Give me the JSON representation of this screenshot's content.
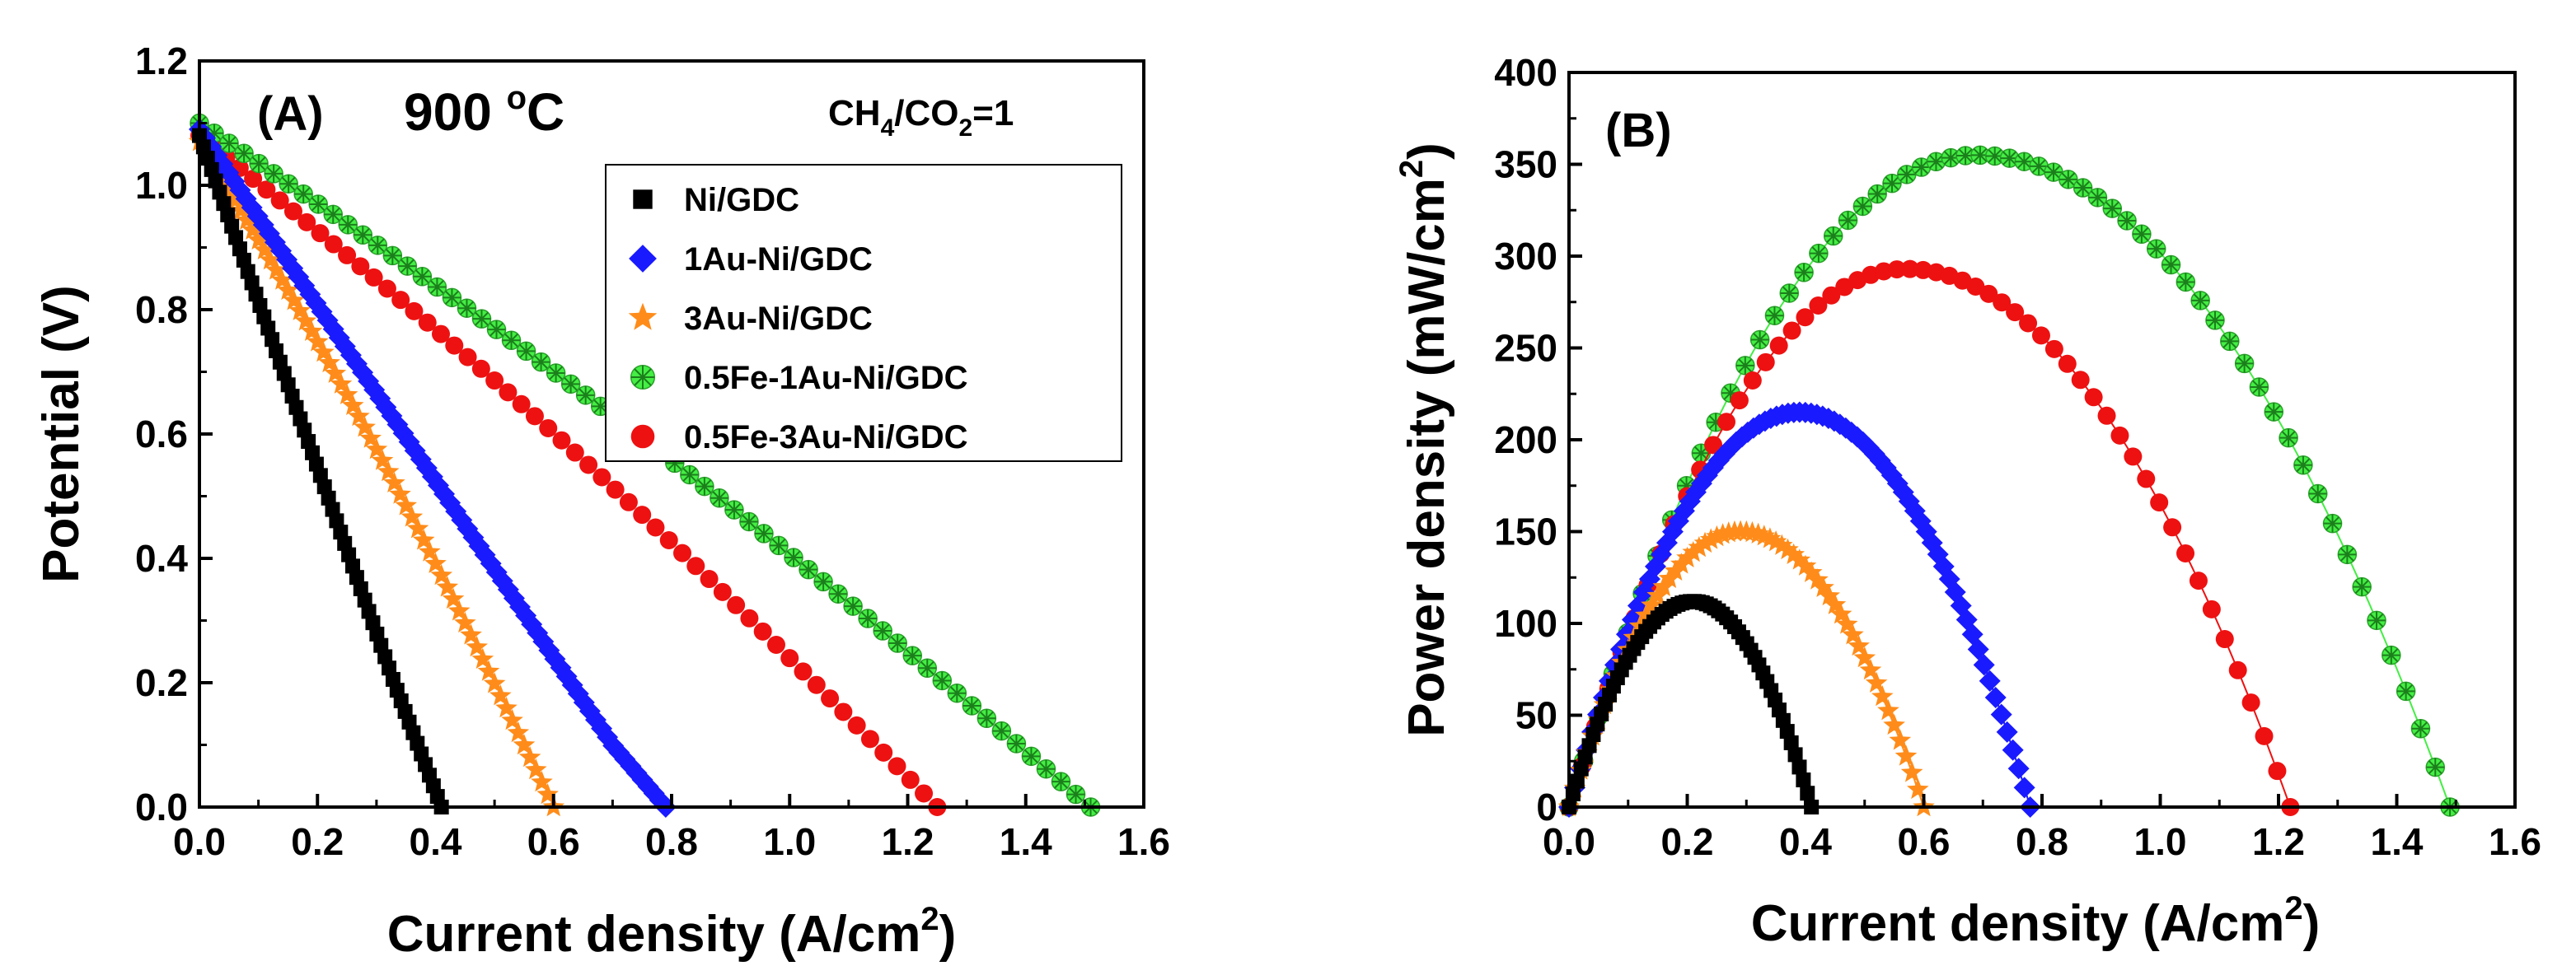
{
  "figure": {
    "colors": {
      "Ni/GDC": "#000000",
      "1Au-Ni/GDC": "#1a1aff",
      "3Au-Ni/GDC": "#ff8c1a",
      "0.5Fe-1Au-Ni/GDC": "#44ee44",
      "0.5Fe-3Au-Ni/GDC": "#ee1111"
    }
  },
  "chart_data": [
    {
      "type": "scatter",
      "panel": "(A)",
      "title": "900 °C",
      "title_parts": {
        "value": "900 ",
        "degree": "o",
        "unit": "C"
      },
      "condition": "CH4/CO2=1",
      "condition_parts": {
        "a": "CH",
        "a_sub": "4",
        "b": "/CO",
        "b_sub": "2",
        "c": "=1"
      },
      "xlabel": "Current density (A/cm2)",
      "xlabel_parts": {
        "main": "Current density (A/cm",
        "sup": "2",
        "end": ")"
      },
      "ylabel": "Potential (V)",
      "xlim": [
        0.0,
        1.6
      ],
      "ylim": [
        0.0,
        1.2
      ],
      "xticks": [
        "0.0",
        "0.2",
        "0.4",
        "0.6",
        "0.8",
        "1.0",
        "1.2",
        "1.4",
        "1.6"
      ],
      "yticks": [
        "0.0",
        "0.2",
        "0.4",
        "0.6",
        "0.8",
        "1.0",
        "1.2"
      ],
      "legend_position": "upper-right",
      "series": [
        {
          "name": "Ni/GDC",
          "marker": "square",
          "ocv": 1.08,
          "isc": 0.41,
          "knee": [
            0.33,
            0.2
          ]
        },
        {
          "name": "1Au-Ni/GDC",
          "marker": "diamond",
          "ocv": 1.09,
          "isc": 0.79,
          "knee": [
            0.7,
            0.1
          ]
        },
        {
          "name": "3Au-Ni/GDC",
          "marker": "star",
          "ocv": 1.07,
          "isc": 0.6,
          "knee": null
        },
        {
          "name": "0.5Fe-1Au-Ni/GDC",
          "marker": "circle-cross",
          "ocv": 1.1,
          "isc": 1.51,
          "knee": null
        },
        {
          "name": "0.5Fe-3Au-Ni/GDC",
          "marker": "circle",
          "ocv": 1.08,
          "isc": 1.25,
          "knee": null
        }
      ]
    },
    {
      "type": "scatter",
      "panel": "(B)",
      "xlabel": "Current density (A/cm2)",
      "xlabel_parts": {
        "main": "Current density (A/cm",
        "sup": "2",
        "end": ")"
      },
      "ylabel": "Power density (mW/cm2)",
      "ylabel_parts": {
        "main": "Power density (mW/cm",
        "sup": "2",
        "end": ")"
      },
      "xlim": [
        0.0,
        1.6
      ],
      "ylim": [
        0,
        400
      ],
      "xticks": [
        "0.0",
        "0.2",
        "0.4",
        "0.6",
        "0.8",
        "1.0",
        "1.2",
        "1.4",
        "1.6"
      ],
      "yticks": [
        "0",
        "50",
        "100",
        "150",
        "200",
        "250",
        "300",
        "350",
        "400"
      ],
      "series": [
        {
          "name": "Ni/GDC",
          "marker": "square",
          "peak_power": 112,
          "peak_at": 0.21
        },
        {
          "name": "1Au-Ni/GDC",
          "marker": "diamond",
          "peak_power": 215,
          "peak_at": 0.39
        },
        {
          "name": "3Au-Ni/GDC",
          "marker": "star",
          "peak_power": 150,
          "peak_at": 0.29
        },
        {
          "name": "0.5Fe-1Au-Ni/GDC",
          "marker": "circle-cross",
          "peak_power": 355,
          "peak_at": 0.69
        },
        {
          "name": "0.5Fe-3Au-Ni/GDC",
          "marker": "circle",
          "peak_power": 293,
          "peak_at": 0.57
        }
      ]
    }
  ]
}
